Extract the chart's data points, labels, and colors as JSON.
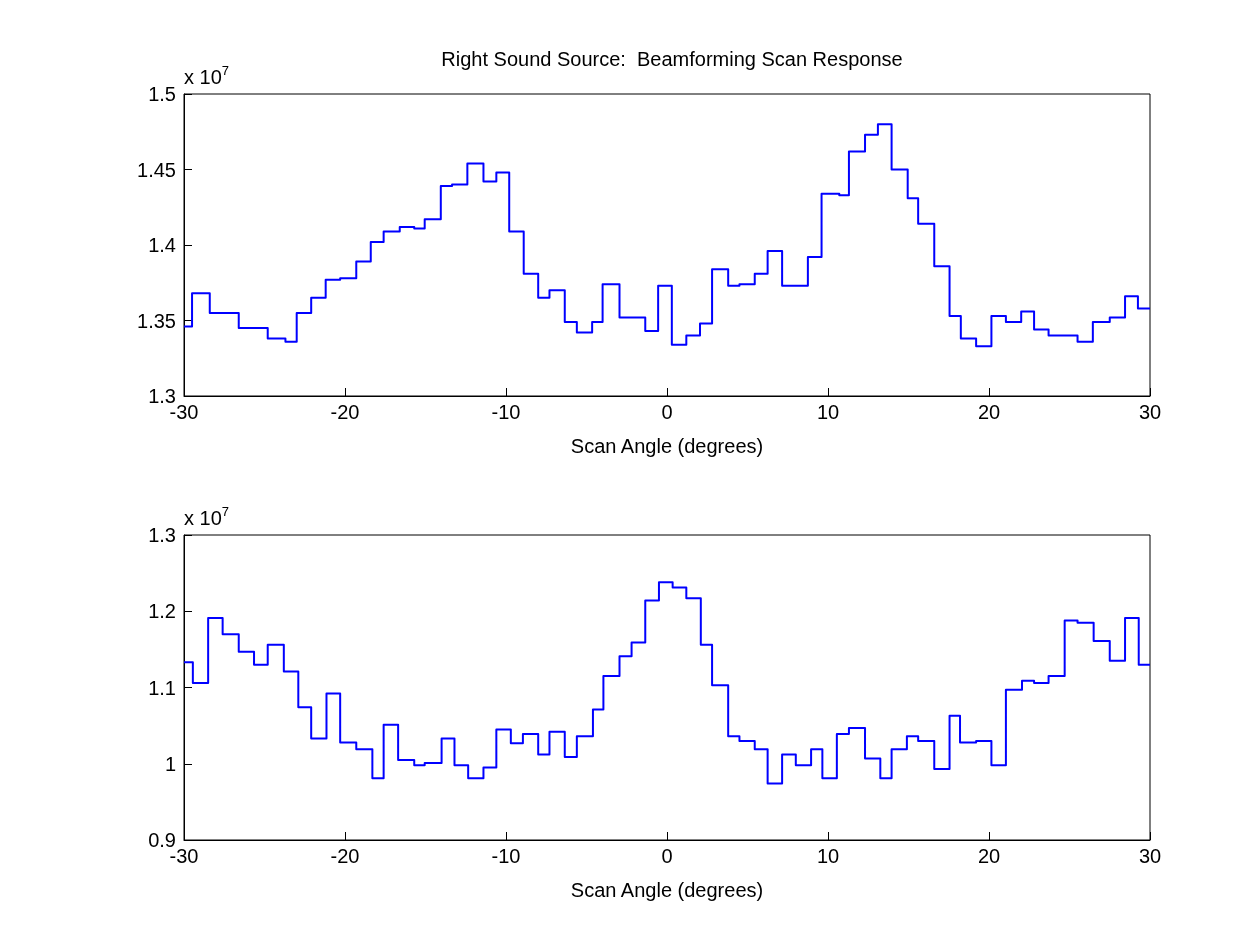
{
  "chart_data": [
    {
      "type": "step",
      "title": "Right Sound Source:  Beamforming Scan Response",
      "xlabel": "Scan Angle (degrees)",
      "annotations": [
        "x 10$^{7}$"
      ],
      "xlim": [
        -30,
        30
      ],
      "xticks": [
        -30,
        -20,
        -10,
        0,
        10,
        20,
        30
      ],
      "ylim": [
        1.3,
        1.5
      ],
      "yticks": [
        1.3,
        1.35,
        1.4,
        1.45,
        1.5
      ],
      "grid": false,
      "marker": "none",
      "line_style": "solid",
      "series": [
        {
          "color": "#0000ff",
          "x": [
            -30,
            -29.5,
            -28.4,
            -26.6,
            -24.8,
            -23.7,
            -23.0,
            -22.1,
            -21.2,
            -20.3,
            -19.3,
            -18.4,
            -17.6,
            -16.6,
            -15.7,
            -15.05,
            -14.05,
            -13.35,
            -12.4,
            -11.4,
            -10.6,
            -9.8,
            -8.9,
            -8.0,
            -7.3,
            -6.35,
            -5.6,
            -4.65,
            -4.0,
            -2.95,
            -1.35,
            -0.55,
            0.3,
            1.2,
            2.05,
            2.8,
            3.8,
            4.5,
            5.45,
            6.25,
            7.15,
            8.75,
            9.6,
            10.7,
            11.3,
            12.3,
            13.1,
            13.95,
            14.95,
            15.6,
            16.6,
            17.55,
            18.25,
            19.2,
            20.15,
            21.05,
            22.0,
            22.8,
            23.7,
            25.5,
            26.45,
            27.5,
            28.45,
            29.25,
            30
          ],
          "values": [
            1.346,
            1.368,
            1.355,
            1.345,
            1.338,
            1.336,
            1.355,
            1.365,
            1.377,
            1.378,
            1.389,
            1.402,
            1.409,
            1.412,
            1.411,
            1.417,
            1.439,
            1.44,
            1.454,
            1.442,
            1.448,
            1.409,
            1.381,
            1.365,
            1.37,
            1.349,
            1.342,
            1.349,
            1.374,
            1.352,
            1.343,
            1.373,
            1.334,
            1.34,
            1.348,
            1.384,
            1.373,
            1.374,
            1.381,
            1.396,
            1.373,
            1.392,
            1.434,
            1.433,
            1.462,
            1.473,
            1.48,
            1.45,
            1.431,
            1.414,
            1.386,
            1.353,
            1.338,
            1.333,
            1.353,
            1.349,
            1.356,
            1.344,
            1.34,
            1.336,
            1.349,
            1.352,
            1.366,
            1.358,
            1.358
          ]
        }
      ]
    },
    {
      "type": "step",
      "xlabel": "Scan Angle (degrees)",
      "annotations": [
        "x 10$^{7}$"
      ],
      "xlim": [
        -30,
        30
      ],
      "xticks": [
        -30,
        -20,
        -10,
        0,
        10,
        20,
        30
      ],
      "ylim": [
        0.9,
        1.3
      ],
      "yticks": [
        0.9,
        1,
        1.1,
        1.2,
        1.3
      ],
      "grid": false,
      "marker": "none",
      "line_style": "solid",
      "series": [
        {
          "color": "#0000ff",
          "x": [
            -30,
            -29.45,
            -28.5,
            -27.6,
            -26.6,
            -25.65,
            -24.8,
            -23.8,
            -22.9,
            -22.1,
            -21.15,
            -20.3,
            -19.3,
            -18.3,
            -17.6,
            -16.7,
            -15.7,
            -15.05,
            -14.0,
            -13.2,
            -12.35,
            -11.4,
            -10.6,
            -9.7,
            -8.95,
            -8.0,
            -7.3,
            -6.35,
            -5.6,
            -4.6,
            -3.95,
            -2.95,
            -2.2,
            -1.35,
            -0.5,
            0.35,
            1.2,
            2.1,
            2.8,
            3.8,
            4.5,
            5.45,
            6.25,
            7.15,
            8.0,
            8.95,
            9.65,
            10.55,
            11.3,
            12.3,
            13.25,
            13.95,
            14.9,
            15.6,
            16.6,
            17.55,
            18.2,
            19.2,
            20.15,
            21.05,
            22.05,
            22.8,
            23.7,
            24.7,
            25.5,
            26.5,
            27.5,
            28.45,
            29.3,
            30
          ],
          "values": [
            1.133,
            1.106,
            1.191,
            1.17,
            1.147,
            1.13,
            1.156,
            1.121,
            1.074,
            1.033,
            1.092,
            1.028,
            1.019,
            0.981,
            1.051,
            1.005,
            0.998,
            1.001,
            1.033,
            0.998,
            0.981,
            0.995,
            1.045,
            1.027,
            1.039,
            1.012,
            1.042,
            1.009,
            1.036,
            1.071,
            1.115,
            1.141,
            1.159,
            1.214,
            1.238,
            1.231,
            1.217,
            1.156,
            1.103,
            1.036,
            1.03,
            1.019,
            0.974,
            1.012,
            0.998,
            1.019,
            0.981,
            1.039,
            1.047,
            1.007,
            0.981,
            1.019,
            1.036,
            1.03,
            0.993,
            1.063,
            1.028,
            1.03,
            0.998,
            1.097,
            1.109,
            1.106,
            1.115,
            1.188,
            1.185,
            1.161,
            1.135,
            1.191,
            1.13,
            1.13
          ]
        }
      ]
    }
  ]
}
